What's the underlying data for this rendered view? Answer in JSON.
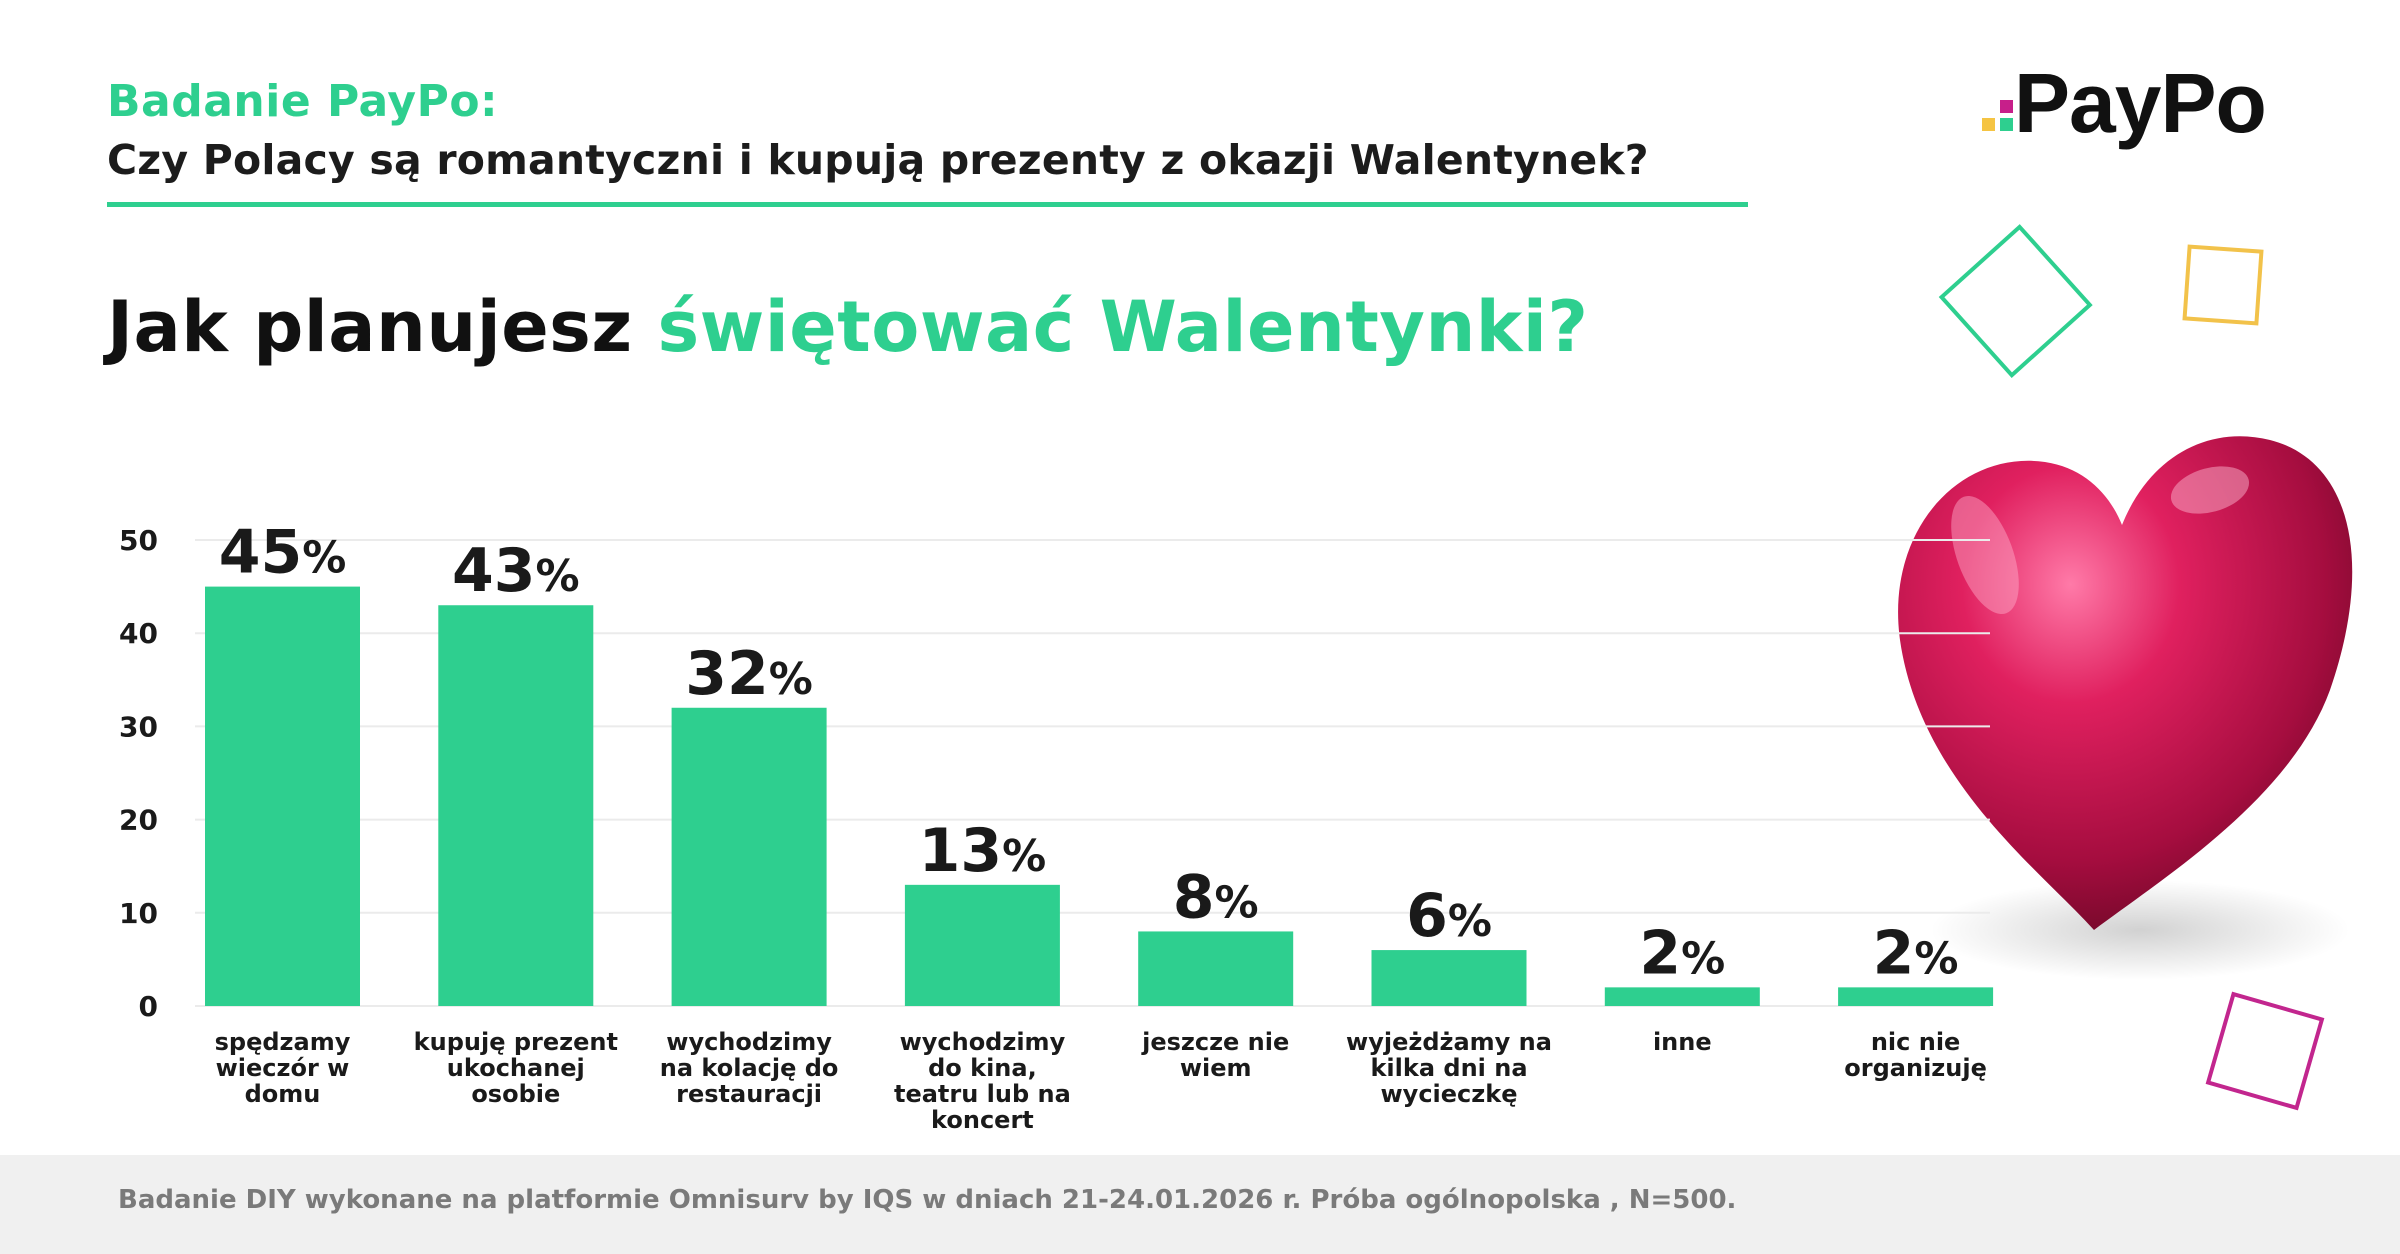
{
  "header": {
    "kicker": "Badanie PayPo:",
    "subtitle": "Czy Polacy są romantyczni i kupują prezenty z okazji Walentynek?",
    "question_part1": "Jak planujesz ",
    "question_part2": "świętować Walentynki?"
  },
  "logo": {
    "text": "PayPo",
    "colors": [
      "#f5c443",
      "#2ecf8f",
      "#c71f8a"
    ]
  },
  "colors": {
    "accent": "#2ecf8f",
    "bar": "#2ecf8f",
    "text": "#1a1a1a",
    "heart": "#c4104f",
    "deco_green": "#2ecf8f",
    "deco_yellow": "#f2c24a",
    "deco_magenta": "#c2268e"
  },
  "chart_data": {
    "type": "bar",
    "title": "Jak planujesz świętować Walentynki?",
    "categories": [
      [
        "spędzamy",
        "wieczór w",
        "domu"
      ],
      [
        "kupuję prezent",
        "ukochanej",
        "osobie"
      ],
      [
        "wychodzimy",
        "na kolację do",
        "restauracji"
      ],
      [
        "wychodzimy",
        "do kina,",
        "teatru lub na",
        "koncert"
      ],
      [
        "jeszcze nie",
        "wiem"
      ],
      [
        "wyjeżdżamy na",
        "kilka dni na",
        "wycieczkę"
      ],
      [
        "inne"
      ],
      [
        "nic nie",
        "organizuję"
      ]
    ],
    "values": [
      45,
      43,
      32,
      13,
      8,
      6,
      2,
      2
    ],
    "value_labels": [
      "45%",
      "43%",
      "32%",
      "13%",
      "8%",
      "6%",
      "2%",
      "2%"
    ],
    "yticks": [
      "0",
      "10",
      "20",
      "30",
      "40",
      "50"
    ],
    "ylim": [
      0,
      50
    ],
    "grid": true,
    "legend": "none"
  },
  "footer": {
    "note": "Badanie DIY wykonane na platformie Omnisurv by IQS w dniach 21-24.01.2026 r.  Próba ogólnopolska , N=500."
  }
}
